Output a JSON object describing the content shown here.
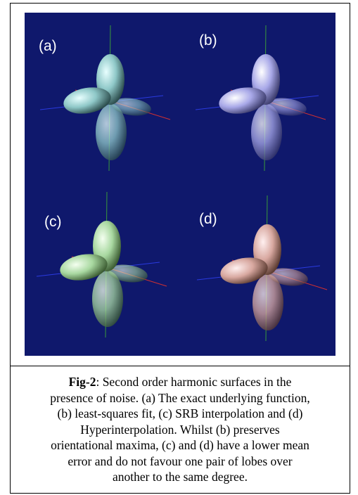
{
  "figure": {
    "panels": [
      {
        "label": "(a)"
      },
      {
        "label": "(b)"
      },
      {
        "label": "(c)"
      },
      {
        "label": "(d)"
      }
    ]
  },
  "caption": {
    "label": "Fig-2",
    "lines": [
      ": Second order harmonic surfaces in the",
      "presence of noise. (a) The exact underlying function,",
      "(b) least-squares fit, (c) SRB interpolation and (d)",
      "Hyperinterpolation. Whilst (b) preserves",
      "orientational maxima, (c) and (d) have a lower mean",
      "error and do not favour one pair of lobes over",
      "another to the same degree."
    ]
  }
}
